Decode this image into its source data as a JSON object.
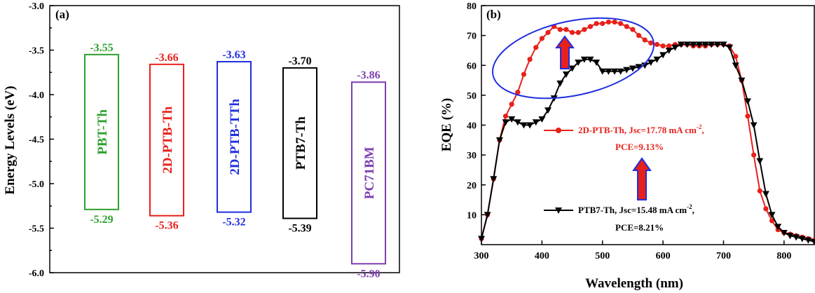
{
  "chart_data": [
    {
      "type": "bar",
      "panel_label": "(a)",
      "ylabel": "Energy Levels (eV)",
      "ylim": [
        -6.0,
        -3.0
      ],
      "yticks": [
        "-3.0",
        "-3.5",
        "-4.0",
        "-4.5",
        "-5.0",
        "-5.5",
        "-6.0"
      ],
      "bars": [
        {
          "name": "PBT-Th",
          "lumo": -3.55,
          "homo": -5.29,
          "lumo_label": "-3.55",
          "homo_label": "-5.29",
          "color": "#2ca02c"
        },
        {
          "name": "2D-PTB-Th",
          "lumo": -3.66,
          "homo": -5.36,
          "lumo_label": "-3.66",
          "homo_label": "-5.36",
          "color": "#e8201a"
        },
        {
          "name": "2D-PTB-TTh",
          "lumo": -3.63,
          "homo": -5.32,
          "lumo_label": "-3.63",
          "homo_label": "-5.32",
          "color": "#1f2fe0"
        },
        {
          "name": "PTB7-Th",
          "lumo": -3.7,
          "homo": -5.39,
          "lumo_label": "-3.70",
          "homo_label": "-5.39",
          "color": "#000000"
        },
        {
          "name": "PC71BM",
          "lumo": -3.86,
          "homo": -5.9,
          "lumo_label": "-3.86",
          "homo_label": "-5.90",
          "color": "#7d3fb0"
        }
      ]
    },
    {
      "type": "line",
      "panel_label": "(b)",
      "xlabel": "Wavelength (nm)",
      "ylabel": "EQE (%)",
      "xlim": [
        300,
        850
      ],
      "ylim": [
        0,
        80
      ],
      "xticks": [
        "300",
        "400",
        "500",
        "600",
        "700",
        "800"
      ],
      "yticks": [
        "10",
        "20",
        "30",
        "40",
        "50",
        "60",
        "70",
        "80"
      ],
      "series": [
        {
          "name": "2D-PTB-Th",
          "legend_line1": "2D-PTB-Th, Jsc=17.78 mA cm",
          "legend_sup": "-2",
          "legend_line1_end": ",",
          "legend_line2": "PCE=9.13%",
          "color": "#e8201a",
          "marker": "circle",
          "x": [
            300,
            310,
            320,
            330,
            340,
            350,
            360,
            370,
            380,
            390,
            400,
            410,
            420,
            430,
            440,
            450,
            460,
            470,
            480,
            490,
            500,
            510,
            520,
            530,
            540,
            550,
            560,
            570,
            580,
            590,
            600,
            610,
            620,
            630,
            640,
            650,
            660,
            670,
            680,
            690,
            700,
            710,
            720,
            730,
            740,
            750,
            760,
            770,
            780,
            790,
            800,
            810,
            820,
            830,
            840,
            850
          ],
          "y": [
            2,
            10,
            22,
            35,
            43,
            47,
            51,
            57,
            62,
            66,
            69,
            71,
            73,
            72,
            72,
            71,
            71,
            72,
            73,
            74,
            74,
            74.5,
            74.5,
            74,
            73,
            72,
            70,
            68.5,
            67.5,
            67,
            66.5,
            66.5,
            67,
            67,
            67,
            66.5,
            66.5,
            66.5,
            67,
            67,
            67,
            66.5,
            63,
            55,
            43,
            30,
            18,
            12,
            8,
            5,
            4,
            3.5,
            3,
            2.5,
            2,
            1.5
          ]
        },
        {
          "name": "PTB7-Th",
          "legend_line1": "PTB7-Th, Jsc=15.48 mA cm",
          "legend_sup": "-2",
          "legend_line1_end": ",",
          "legend_line2": "PCE=8.21%",
          "color": "#000000",
          "marker": "triangle-down",
          "x": [
            300,
            310,
            320,
            330,
            340,
            350,
            360,
            370,
            380,
            390,
            400,
            410,
            420,
            430,
            440,
            450,
            460,
            470,
            480,
            490,
            500,
            510,
            520,
            530,
            540,
            550,
            560,
            570,
            580,
            590,
            600,
            610,
            620,
            630,
            640,
            650,
            660,
            670,
            680,
            690,
            700,
            710,
            720,
            730,
            740,
            750,
            760,
            770,
            780,
            790,
            800,
            810,
            820,
            830,
            840,
            850
          ],
          "y": [
            2,
            10,
            22,
            35,
            41,
            42,
            41,
            40,
            40,
            41,
            42,
            45,
            49,
            54,
            57,
            59,
            61,
            62,
            62,
            61,
            58,
            58,
            58,
            58,
            58.5,
            59,
            59.5,
            60,
            61,
            62,
            63.5,
            65,
            66,
            67,
            67,
            67,
            67,
            67,
            67,
            67,
            67,
            66,
            60,
            55,
            48,
            40,
            28,
            17,
            10,
            6,
            4,
            3,
            2.5,
            2,
            1.5,
            1
          ]
        }
      ],
      "annotations": [
        "highlight-ellipse",
        "up-arrow-1",
        "up-arrow-2"
      ]
    }
  ]
}
